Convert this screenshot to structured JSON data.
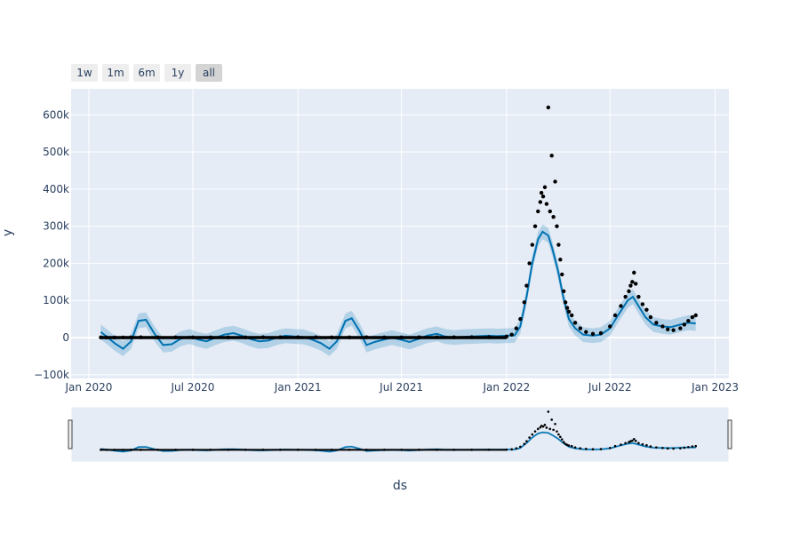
{
  "range_selector": {
    "buttons": [
      {
        "label": "1w",
        "active": false
      },
      {
        "label": "1m",
        "active": false
      },
      {
        "label": "6m",
        "active": false
      },
      {
        "label": "1y",
        "active": false
      },
      {
        "label": "all",
        "active": true
      }
    ]
  },
  "colors": {
    "plot_bg": "#e5ecf6",
    "grid": "#ffffff",
    "forecast_line": "#0072b2",
    "uncertainty_band": "rgba(0,114,178,0.22)",
    "actual_points": "#000000"
  },
  "chart_data": {
    "type": "line",
    "xlabel": "ds",
    "ylabel": "y",
    "x_type": "date",
    "x_range": [
      "2019-12-01",
      "2023-01-25"
    ],
    "y_range": [
      -110000,
      670000
    ],
    "x_ticks": [
      {
        "value": "2020-01-01",
        "label": "Jan 2020"
      },
      {
        "value": "2020-07-01",
        "label": "Jul 2020"
      },
      {
        "value": "2021-01-01",
        "label": "Jan 2021"
      },
      {
        "value": "2021-07-01",
        "label": "Jul 2021"
      },
      {
        "value": "2022-01-01",
        "label": "Jan 2022"
      },
      {
        "value": "2022-07-01",
        "label": "Jul 2022"
      },
      {
        "value": "2023-01-01",
        "label": "Jan 2023"
      }
    ],
    "y_ticks": [
      {
        "value": -100000,
        "label": "−100k"
      },
      {
        "value": 0,
        "label": "0"
      },
      {
        "value": 100000,
        "label": "100k"
      },
      {
        "value": 200000,
        "label": "200k"
      },
      {
        "value": 300000,
        "label": "300k"
      },
      {
        "value": 400000,
        "label": "400k"
      },
      {
        "value": 500000,
        "label": "500k"
      },
      {
        "value": 600000,
        "label": "600k"
      }
    ],
    "grid": true,
    "legend": "none",
    "range_slider": true,
    "series": [
      {
        "kind": "forecast",
        "x": [
          "2020-01-22",
          "2020-02-01",
          "2020-02-15",
          "2020-03-01",
          "2020-03-15",
          "2020-03-28",
          "2020-04-10",
          "2020-04-25",
          "2020-05-10",
          "2020-05-25",
          "2020-06-10",
          "2020-06-25",
          "2020-07-10",
          "2020-07-25",
          "2020-08-10",
          "2020-08-25",
          "2020-09-10",
          "2020-09-25",
          "2020-10-10",
          "2020-10-25",
          "2020-11-10",
          "2020-11-25",
          "2020-12-10",
          "2020-12-25",
          "2021-01-10",
          "2021-01-25",
          "2021-02-10",
          "2021-02-25",
          "2021-03-10",
          "2021-03-25",
          "2021-04-05",
          "2021-04-18",
          "2021-05-01",
          "2021-05-15",
          "2021-06-01",
          "2021-06-15",
          "2021-07-01",
          "2021-07-15",
          "2021-08-01",
          "2021-08-15",
          "2021-09-01",
          "2021-09-15",
          "2021-10-01",
          "2021-10-15",
          "2021-11-01",
          "2021-11-15",
          "2021-12-01",
          "2021-12-15",
          "2022-01-01",
          "2022-01-15",
          "2022-01-25",
          "2022-02-05",
          "2022-02-15",
          "2022-02-25",
          "2022-03-05",
          "2022-03-15",
          "2022-03-22",
          "2022-04-01",
          "2022-04-10",
          "2022-04-20",
          "2022-05-01",
          "2022-05-15",
          "2022-06-01",
          "2022-06-15",
          "2022-07-01",
          "2022-07-15",
          "2022-08-01",
          "2022-08-10",
          "2022-08-20",
          "2022-09-01",
          "2022-09-15",
          "2022-10-01",
          "2022-10-15",
          "2022-11-01",
          "2022-11-15",
          "2022-11-28"
        ],
        "y": [
          15000,
          3000,
          -15000,
          -30000,
          -10000,
          45000,
          48000,
          10000,
          -20000,
          -18000,
          -3000,
          3000,
          -5000,
          -10000,
          0,
          8000,
          12000,
          5000,
          -4000,
          -10000,
          -8000,
          0,
          5000,
          3000,
          2000,
          -5000,
          -15000,
          -30000,
          -10000,
          45000,
          52000,
          20000,
          -20000,
          -12000,
          -5000,
          0,
          -6000,
          -12000,
          -3000,
          5000,
          10000,
          3000,
          0,
          2000,
          3000,
          4000,
          5000,
          4000,
          5000,
          6000,
          30000,
          110000,
          200000,
          265000,
          285000,
          275000,
          240000,
          180000,
          110000,
          50000,
          25000,
          8000,
          5000,
          8000,
          25000,
          60000,
          100000,
          110000,
          85000,
          55000,
          35000,
          30000,
          28000,
          35000,
          40000,
          38000
        ],
        "y_lower": [
          -5000,
          -17000,
          -35000,
          -50000,
          -30000,
          25000,
          28000,
          -10000,
          -40000,
          -38000,
          -23000,
          -17000,
          -25000,
          -30000,
          -20000,
          -12000,
          -8000,
          -15000,
          -24000,
          -30000,
          -28000,
          -20000,
          -15000,
          -17000,
          -18000,
          -25000,
          -35000,
          -50000,
          -30000,
          25000,
          32000,
          0,
          -40000,
          -32000,
          -25000,
          -20000,
          -26000,
          -32000,
          -23000,
          -15000,
          -10000,
          -17000,
          -20000,
          -18000,
          -17000,
          -16000,
          -15000,
          -16000,
          -15000,
          -14000,
          10000,
          90000,
          180000,
          245000,
          265000,
          255000,
          220000,
          160000,
          90000,
          30000,
          5000,
          -12000,
          -15000,
          -12000,
          5000,
          40000,
          80000,
          90000,
          65000,
          35000,
          15000,
          10000,
          8000,
          15000,
          20000,
          18000
        ],
        "y_upper": [
          35000,
          23000,
          5000,
          -10000,
          10000,
          65000,
          68000,
          30000,
          0,
          2000,
          17000,
          23000,
          15000,
          10000,
          20000,
          28000,
          32000,
          25000,
          16000,
          10000,
          12000,
          20000,
          25000,
          23000,
          22000,
          15000,
          5000,
          -10000,
          10000,
          65000,
          72000,
          40000,
          0,
          8000,
          15000,
          20000,
          14000,
          8000,
          17000,
          25000,
          30000,
          23000,
          20000,
          22000,
          23000,
          24000,
          25000,
          24000,
          25000,
          26000,
          50000,
          130000,
          220000,
          285000,
          305000,
          295000,
          260000,
          200000,
          130000,
          70000,
          45000,
          28000,
          25000,
          28000,
          45000,
          80000,
          120000,
          130000,
          105000,
          75000,
          55000,
          50000,
          48000,
          55000,
          60000,
          58000
        ]
      },
      {
        "kind": "actual",
        "x": [
          "2020-01-22",
          "2020-02-01",
          "2020-02-15",
          "2020-03-01",
          "2020-03-15",
          "2020-04-01",
          "2020-05-01",
          "2020-06-01",
          "2020-07-01",
          "2020-08-01",
          "2020-09-01",
          "2020-10-01",
          "2020-11-01",
          "2020-12-01",
          "2021-01-01",
          "2021-02-01",
          "2021-03-01",
          "2021-04-01",
          "2021-05-01",
          "2021-06-01",
          "2021-07-01",
          "2021-08-01",
          "2021-09-01",
          "2021-10-01",
          "2021-11-01",
          "2021-12-01",
          "2022-01-01",
          "2022-01-10",
          "2022-01-18",
          "2022-01-25",
          "2022-02-01",
          "2022-02-05",
          "2022-02-10",
          "2022-02-15",
          "2022-02-20",
          "2022-02-25",
          "2022-03-01",
          "2022-03-03",
          "2022-03-06",
          "2022-03-09",
          "2022-03-12",
          "2022-03-15",
          "2022-03-18",
          "2022-03-21",
          "2022-03-24",
          "2022-03-27",
          "2022-03-30",
          "2022-04-02",
          "2022-04-05",
          "2022-04-08",
          "2022-04-11",
          "2022-04-14",
          "2022-04-17",
          "2022-04-20",
          "2022-04-25",
          "2022-05-01",
          "2022-05-10",
          "2022-05-20",
          "2022-06-01",
          "2022-06-15",
          "2022-07-01",
          "2022-07-10",
          "2022-07-20",
          "2022-07-28",
          "2022-08-03",
          "2022-08-06",
          "2022-08-09",
          "2022-08-12",
          "2022-08-15",
          "2022-08-20",
          "2022-08-27",
          "2022-09-03",
          "2022-09-10",
          "2022-09-20",
          "2022-10-01",
          "2022-10-10",
          "2022-10-20",
          "2022-11-01",
          "2022-11-08",
          "2022-11-15",
          "2022-11-22",
          "2022-11-28"
        ],
        "y": [
          500,
          300,
          200,
          300,
          500,
          700,
          600,
          500,
          600,
          500,
          400,
          500,
          700,
          800,
          900,
          700,
          500,
          600,
          700,
          600,
          500,
          800,
          900,
          800,
          1000,
          1200,
          3000,
          8000,
          25000,
          50000,
          95000,
          140000,
          200000,
          250000,
          300000,
          340000,
          365000,
          390000,
          380000,
          405000,
          360000,
          620000,
          340000,
          490000,
          325000,
          420000,
          300000,
          250000,
          210000,
          170000,
          125000,
          95000,
          80000,
          70000,
          60000,
          40000,
          25000,
          15000,
          10000,
          12000,
          30000,
          60000,
          85000,
          110000,
          125000,
          140000,
          150000,
          175000,
          145000,
          110000,
          90000,
          75000,
          55000,
          40000,
          30000,
          22000,
          20000,
          25000,
          35000,
          45000,
          55000,
          60000
        ]
      }
    ]
  }
}
